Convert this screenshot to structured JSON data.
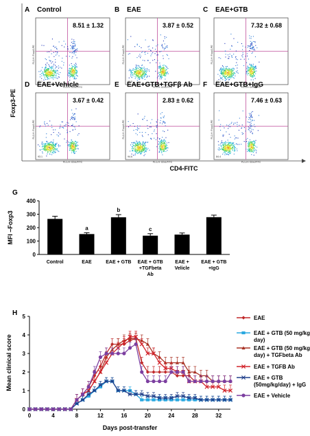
{
  "flow": {
    "ylabel": "Foxp3-PE",
    "xlabel": "CD4-FITC",
    "panels": [
      {
        "letter": "A",
        "title": "Control",
        "pct": "8.51  ± 1.32",
        "ax_y": "FL2-H: Foxp3-PE",
        "ax_x": "FL1-H: CD4-FITC",
        "quad": "82.1",
        "density": 0.6
      },
      {
        "letter": "B",
        "title": "EAE",
        "pct": "3.87 ± 0.52",
        "ax_y": "FL2-H: Foxp3-PE",
        "ax_x": "FL1-H: CD4-FITC",
        "quad": "90.5",
        "density": 0.3
      },
      {
        "letter": "C",
        "title": "EAE+GTB",
        "pct": "7.32  ± 0.68",
        "ax_y": "FL2-H: Foxp3-PE",
        "ax_x": "FL1-H: CD4-FITC",
        "quad": "82.3",
        "density": 0.55
      },
      {
        "letter": "D",
        "title": "EAE+Vehicle",
        "pct": "3.67  ± 0.42",
        "ax_y": "FL2-H: Foxp3-PE",
        "ax_x": "FL1-H: CD4-FITC",
        "quad": "93.1",
        "density": 0.3
      },
      {
        "letter": "E",
        "title": "EAE+GTB+TGFβ Ab",
        "pct": "2.83  ± 0.62",
        "ax_y": "FL2-H: Foxp3-PE",
        "ax_x": "FL1-H: CD4-FITC",
        "quad": "94.6",
        "density": 0.25
      },
      {
        "letter": "F",
        "title": "EAE+GTB+IgG",
        "pct": "7.46  ± 0.63",
        "ax_y": "FL2-H: Foxp3-PE",
        "ax_x": "FL1-H: CD4-FITC",
        "quad": "84.4",
        "density": 0.55
      }
    ]
  },
  "chart_data": [
    {
      "type": "bar",
      "panel": "G",
      "ylabel": "MFI –Foxp3",
      "ylim": [
        0,
        400
      ],
      "yticks": [
        0,
        100,
        200,
        300,
        400
      ],
      "categories": [
        "Control",
        "EAE",
        "EAE + GTB",
        "EAE + GTB\n+TGFbeta\nAb",
        "EAE +\nVelicle",
        "EAE + GTB\n+IgG"
      ],
      "values": [
        265,
        152,
        277,
        140,
        148,
        278
      ],
      "errors": [
        20,
        10,
        20,
        15,
        12,
        15
      ],
      "annotations": [
        "",
        "a",
        "b",
        "c",
        "",
        ""
      ],
      "bar_color": "#000000"
    },
    {
      "type": "line",
      "panel": "H",
      "xlabel": "Days post-transfer",
      "ylabel": "Mean clinical score",
      "xlim": [
        0,
        34
      ],
      "ylim": [
        0,
        5
      ],
      "xticks": [
        0,
        4,
        8,
        12,
        16,
        20,
        24,
        28,
        32
      ],
      "yticks": [
        0,
        1,
        2,
        3,
        4,
        5
      ],
      "x": [
        0,
        1,
        2,
        3,
        4,
        5,
        6,
        7,
        8,
        9,
        10,
        11,
        12,
        13,
        14,
        15,
        16,
        17,
        18,
        19,
        20,
        21,
        22,
        23,
        24,
        25,
        26,
        27,
        28,
        29,
        30,
        31,
        32,
        33,
        34
      ],
      "series": [
        {
          "name": "EAE",
          "color": "#c0282a",
          "marker": "diamond",
          "err": 0.3,
          "values": [
            0,
            0,
            0,
            0,
            0,
            0,
            0,
            0,
            0.5,
            0.8,
            1.2,
            1.8,
            2.3,
            3.0,
            3.5,
            3.5,
            3.5,
            3.7,
            3.8,
            2.5,
            2.0,
            2.0,
            2.0,
            2.0,
            2.0,
            1.8,
            1.8,
            1.8,
            1.5,
            1.5,
            1.5,
            1.5,
            1.5,
            1.5,
            1.5
          ]
        },
        {
          "name": "EAE + GTB (50 mg/kg/ day)",
          "color": "#29a8e0",
          "marker": "square",
          "err": 0.2,
          "values": [
            0,
            0,
            0,
            0,
            0,
            0,
            0,
            0,
            0.3,
            0.5,
            0.7,
            1.0,
            1.2,
            1.5,
            1.5,
            1.0,
            1.0,
            1.0,
            0.8,
            0.5,
            0.5,
            0.5,
            0.5,
            0.5,
            0.5,
            0.5,
            0.5,
            0.5,
            0.5,
            0.5,
            0.5,
            0.5,
            0.5,
            0.5,
            0.5
          ]
        },
        {
          "name": "EAE + GTB (50 mg/kg/ day) + TGFbeta Ab",
          "color": "#a83224",
          "marker": "triangle",
          "err": 0.3,
          "values": [
            0,
            0,
            0,
            0,
            0,
            0,
            0,
            0,
            0.5,
            0.8,
            1.0,
            1.5,
            2.0,
            2.8,
            3.2,
            3.5,
            3.7,
            3.8,
            3.8,
            3.7,
            3.5,
            3.0,
            2.8,
            2.5,
            2.5,
            2.5,
            2.5,
            2.0,
            2.0,
            1.8,
            1.8,
            1.5,
            1.5,
            1.5,
            1.5
          ]
        },
        {
          "name": "EAE + TGFB Ab",
          "color": "#d2232a",
          "marker": "x",
          "err": 0.3,
          "values": [
            0,
            0,
            0,
            0,
            0,
            0,
            0,
            0,
            0.5,
            0.8,
            1.0,
            1.5,
            2.0,
            2.5,
            3.0,
            3.3,
            3.6,
            3.9,
            3.9,
            3.5,
            3.0,
            3.0,
            2.5,
            2.2,
            2.2,
            2.0,
            2.0,
            1.5,
            1.5,
            1.5,
            1.2,
            1.2,
            1.2,
            1.0,
            1.0
          ]
        },
        {
          "name": "EAE + GTB (50mg/kg/day) + IgG",
          "color": "#1f3e8a",
          "marker": "star",
          "err": 0.2,
          "values": [
            0,
            0,
            0,
            0,
            0,
            0,
            0,
            0,
            0.3,
            0.5,
            0.8,
            1.0,
            1.3,
            1.5,
            1.5,
            1.0,
            1.0,
            0.8,
            0.8,
            0.8,
            0.7,
            0.7,
            0.6,
            0.6,
            0.6,
            0.7,
            0.7,
            0.6,
            0.6,
            0.5,
            0.5,
            0.5,
            0.5,
            0.5,
            0.5
          ]
        },
        {
          "name": "EAE + Vehicle",
          "color": "#7c3fa0",
          "marker": "circle",
          "err": 0.3,
          "values": [
            0,
            0,
            0,
            0,
            0,
            0,
            0,
            0,
            0.5,
            0.8,
            1.2,
            2.0,
            2.8,
            3.0,
            3.0,
            3.0,
            3.0,
            3.3,
            3.5,
            2.0,
            1.5,
            1.5,
            1.5,
            1.5,
            2.0,
            2.0,
            2.0,
            1.5,
            1.5,
            1.5,
            1.5,
            1.5,
            1.5,
            1.5,
            1.5
          ]
        }
      ]
    }
  ]
}
